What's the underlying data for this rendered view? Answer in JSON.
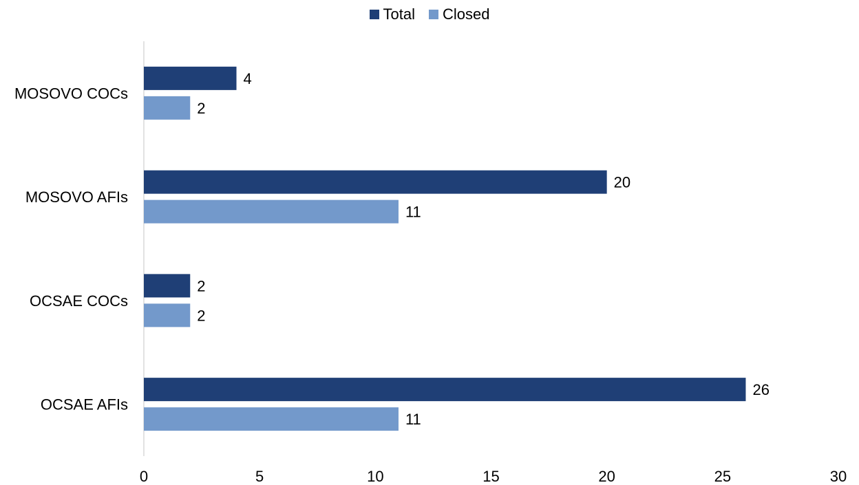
{
  "chart_data": {
    "type": "bar",
    "orientation": "horizontal",
    "categories": [
      "MOSOVO COCs",
      "MOSOVO AFIs",
      "OCSAE COCs",
      "OCSAE AFIs"
    ],
    "series": [
      {
        "name": "Total",
        "values": [
          4,
          20,
          2,
          26
        ],
        "color": "#1f3f76"
      },
      {
        "name": "Closed",
        "values": [
          2,
          11,
          2,
          11
        ],
        "color": "#7399cb"
      }
    ],
    "xlim": [
      0,
      30
    ],
    "xticks": [
      0,
      5,
      10,
      15,
      20,
      25,
      30
    ],
    "grid": false,
    "legend_position": "top-center"
  }
}
